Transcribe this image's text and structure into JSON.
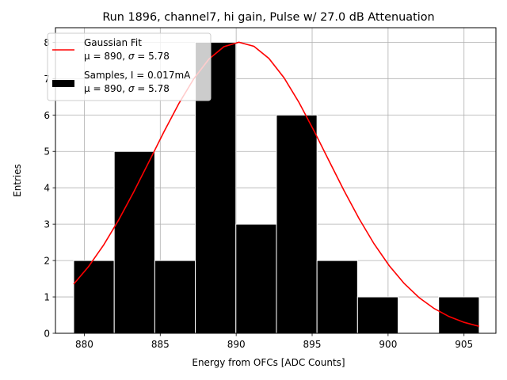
{
  "chart_data": {
    "type": "bar",
    "title": "Run 1896, channel7, hi gain, Pulse w/ 27.0 dB Attenuation",
    "xlabel": "Energy from OFCs [ADC Counts]",
    "ylabel": "Entries",
    "xlim": [
      878.1,
      907.1
    ],
    "ylim": [
      0,
      8.4
    ],
    "grid": true,
    "xticks": [
      880,
      885,
      890,
      895,
      900,
      905
    ],
    "yticks": [
      0,
      1,
      2,
      3,
      4,
      5,
      6,
      7,
      8
    ],
    "bins": [
      {
        "x0": 879.3,
        "x1": 881.97,
        "count": 2
      },
      {
        "x0": 881.97,
        "x1": 884.64,
        "count": 5
      },
      {
        "x0": 884.64,
        "x1": 887.31,
        "count": 2
      },
      {
        "x0": 887.31,
        "x1": 889.98,
        "count": 8
      },
      {
        "x0": 889.98,
        "x1": 892.65,
        "count": 3
      },
      {
        "x0": 892.65,
        "x1": 895.32,
        "count": 6
      },
      {
        "x0": 895.32,
        "x1": 897.99,
        "count": 2
      },
      {
        "x0": 897.99,
        "x1": 900.66,
        "count": 1
      },
      {
        "x0": 900.66,
        "x1": 903.33,
        "count": 0
      },
      {
        "x0": 903.33,
        "x1": 906.0,
        "count": 1
      }
    ],
    "fit": {
      "type": "gaussian",
      "mu": 890.2,
      "sigma": 5.78,
      "amplitude": 8.0,
      "x_range": [
        879.3,
        906.0
      ],
      "color": "#ff0000"
    },
    "bar_color": "#000000",
    "bar_edge_color": "#ffffff",
    "legend": {
      "position": "top-left",
      "entries": [
        {
          "kind": "line",
          "color": "#ff0000",
          "line1": "Gaussian Fit",
          "line2_prefix": "μ = 890, ",
          "line2_sigma": "σ",
          "line2_suffix": " = 5.78"
        },
        {
          "kind": "patch",
          "color": "#000000",
          "line1": "Samples, I = 0.017mA",
          "line2_prefix": "μ = 890, ",
          "line2_sigma": "σ",
          "line2_suffix": " = 5.78"
        }
      ]
    }
  }
}
